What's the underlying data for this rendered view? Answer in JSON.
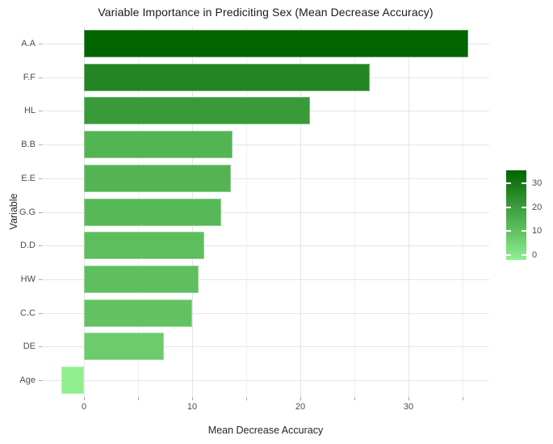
{
  "chart_data": {
    "type": "bar",
    "orientation": "horizontal",
    "title": "Variable Importance in Prediciting Sex (Mean Decrease Accuracy)",
    "xlabel": "Mean Decrease Accuracy",
    "ylabel": "Variable",
    "categories": [
      "A.A",
      "F.F",
      "HL",
      "B.B",
      "E.E",
      "G.G",
      "D.D",
      "HW",
      "C.C",
      "DE",
      "Age"
    ],
    "values": [
      35.5,
      26.4,
      20.9,
      13.7,
      13.6,
      12.7,
      11.1,
      10.6,
      10.0,
      7.4,
      -2.1
    ],
    "x_major_ticks": [
      0,
      10,
      20,
      30
    ],
    "x_minor_ticks": [
      5,
      15,
      25,
      35
    ],
    "xlim": [
      -3.9,
      37.45
    ],
    "grid": true,
    "legend_position": "right",
    "colorbar": {
      "tick_labels": [
        30,
        20,
        10,
        0
      ],
      "low_color": "#90EE90",
      "high_color": "#006400",
      "domain": [
        -2.1,
        35.5
      ]
    }
  },
  "colors": {
    "title_text": "#1a1a1a",
    "axis_title_text": "#262626",
    "tick_text": "#4d4d4d",
    "grid_major": "#e5e5e5",
    "grid_minor": "#f0f0f0",
    "tick_mark": "#a6a6a6",
    "background": "#ffffff"
  }
}
